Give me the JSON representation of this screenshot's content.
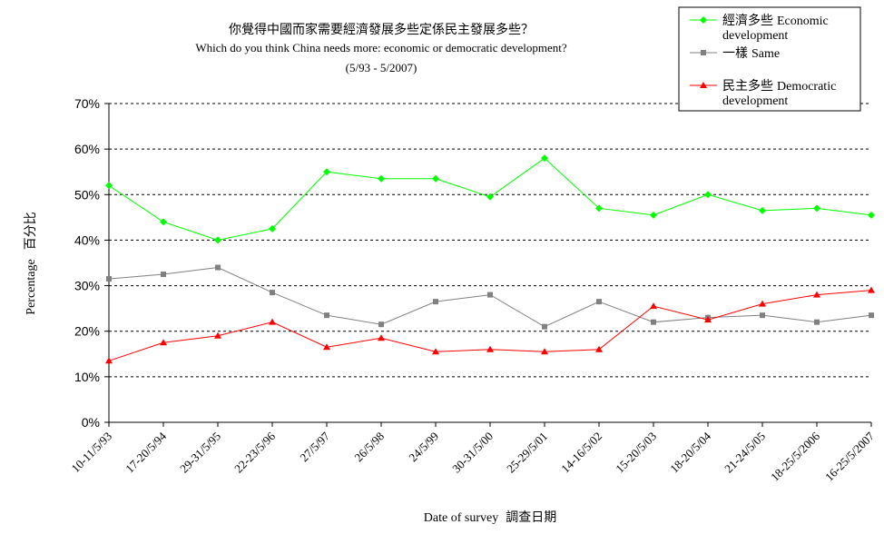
{
  "chart_data": {
    "type": "line",
    "title_cn": "你覺得中國而家需要經濟發展多些定係民主發展多些？",
    "title_en": "Which do you think China needs more: economic or democratic development?",
    "subtitle": "(5/93 - 5/2007)",
    "xlabel": "Date of survey",
    "xlabel_cn": "調查日期",
    "ylabel": "Percentage",
    "ylabel_cn": "百分比",
    "ylim": [
      0,
      70
    ],
    "yticks": [
      "0%",
      "10%",
      "20%",
      "30%",
      "40%",
      "50%",
      "60%",
      "70%"
    ],
    "grid": true,
    "legend_position": "top-right",
    "categories": [
      "10-11/5/93",
      "17-20/5/94",
      "29-31/5/95",
      "22-23/5/96",
      "27/5/97",
      "26/5/98",
      "24/5/99",
      "30-31/5/00",
      "25-29/5/01",
      "14-16/5/02",
      "15-20/5/03",
      "18-20/5/04",
      "21-24/5/05",
      "18-25/5/2006",
      "16-25/5/2007"
    ],
    "series": [
      {
        "name_cn": "經濟多些",
        "name_en": "Economic development",
        "color": "#00ff00",
        "marker": "diamond",
        "values": [
          52,
          44,
          40,
          42.5,
          55,
          53.5,
          53.5,
          49.5,
          58,
          47,
          45.5,
          50,
          46.5,
          47,
          45.5
        ]
      },
      {
        "name_cn": "一樣",
        "name_en": "Same",
        "color": "#808080",
        "marker": "square",
        "values": [
          31.5,
          32.5,
          34,
          28.5,
          23.5,
          21.5,
          26.5,
          28,
          21,
          26.5,
          22,
          23,
          23.5,
          22,
          23.5
        ]
      },
      {
        "name_cn": "民主多些",
        "name_en": "Democratic development",
        "color": "#ff0000",
        "marker": "triangle",
        "values": [
          13.5,
          17.5,
          19,
          22,
          16.5,
          18.5,
          15.5,
          16,
          15.5,
          16,
          25.5,
          22.5,
          26,
          28,
          29
        ]
      }
    ]
  }
}
